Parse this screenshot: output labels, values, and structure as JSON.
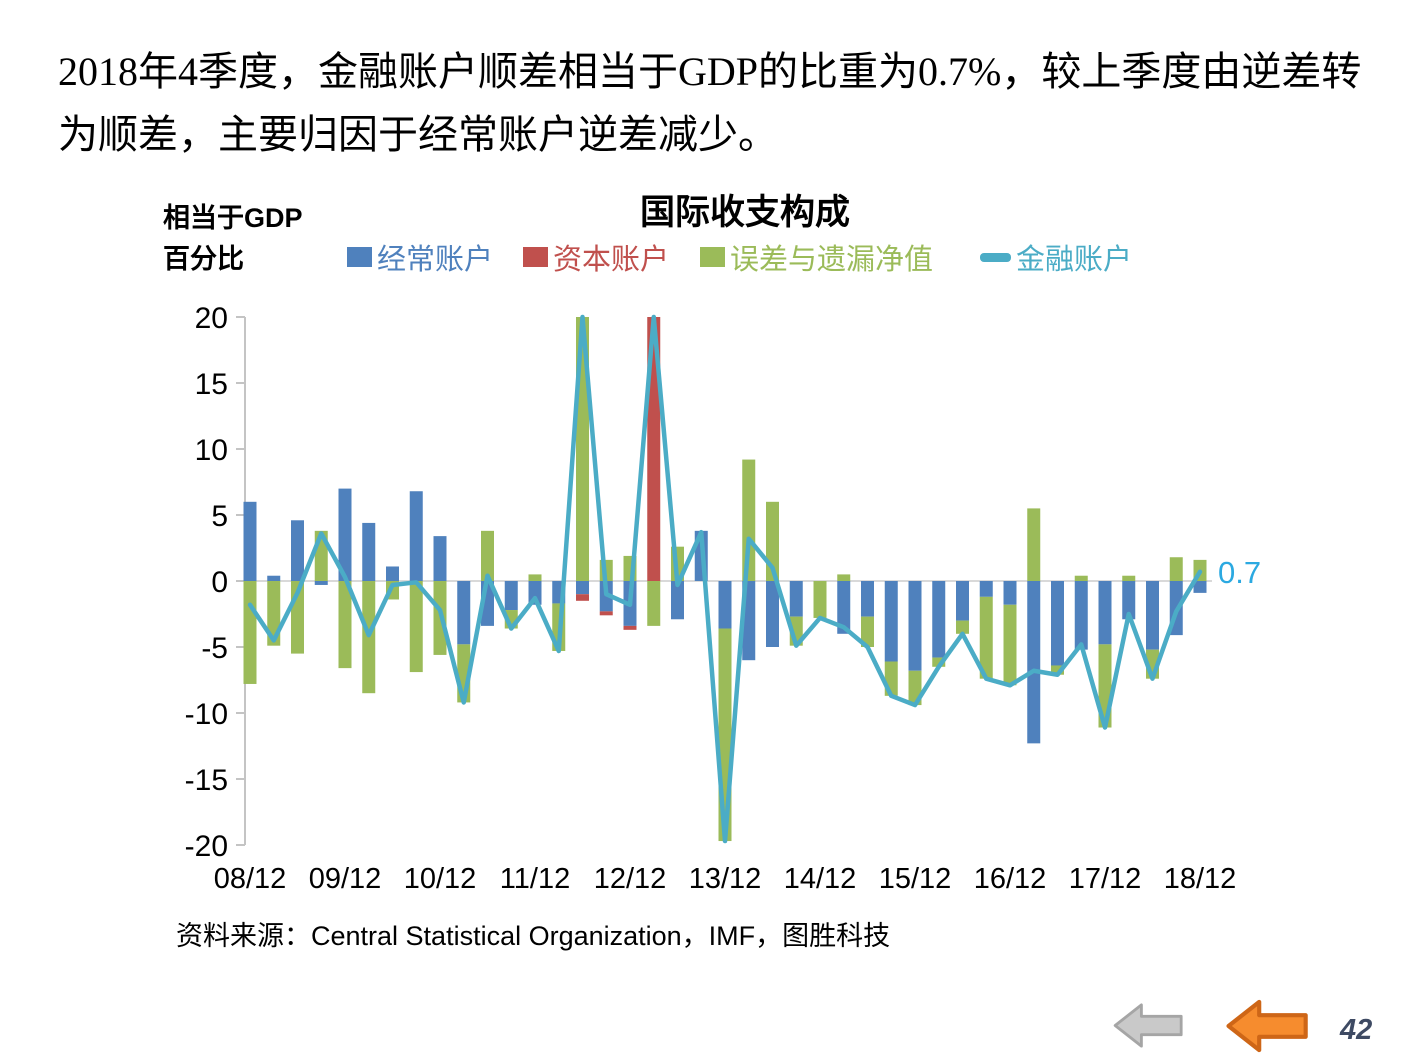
{
  "slide": {
    "headline": "2018年4季度，金融账户顺差相当于GDP的比重为0.7%，较上季度由逆差转为顺差，主要归因于经常账户逆差减少。",
    "source_note": "资料来源：Central Statistical Organization，IMF，图胜科技",
    "page_number": "42",
    "nav": {
      "arrows": [
        {
          "icon": "gray-left-arrow",
          "fill": "#C9C9C9",
          "stroke": "#A5A5A5"
        },
        {
          "icon": "orange-left-arrow",
          "fill": "#F68C2E",
          "stroke": "#CE6617"
        }
      ]
    }
  },
  "chart": {
    "title": "国际收支构成",
    "unit_label_line1": "相当于GDP",
    "unit_label_line2": "百分比",
    "end_label": {
      "text": "0.7",
      "color": "#2BA9E1"
    }
  },
  "chart_data": {
    "type": "bar",
    "subtype": "stacked bars with line overlay",
    "title": "国际收支构成",
    "xlabel": "",
    "ylabel": "相当于GDP百分比",
    "ylim": [
      -20,
      20
    ],
    "y_ticks": [
      20,
      15,
      10,
      5,
      0,
      -5,
      -10,
      -15,
      -20
    ],
    "x_tick_labels": [
      "08/12",
      "09/12",
      "10/12",
      "11/12",
      "12/12",
      "13/12",
      "14/12",
      "15/12",
      "16/12",
      "17/12",
      "18/12"
    ],
    "grid": "zero gridline only",
    "legend_position": "top",
    "axis_color": "#C4C4C4",
    "zero_line_color": "#D9D9D9",
    "categories": [
      "08/12",
      "09/03",
      "09/06",
      "09/09",
      "09/12",
      "10/03",
      "10/06",
      "10/09",
      "10/12",
      "11/03",
      "11/06",
      "11/09",
      "11/12",
      "12/03",
      "12/06",
      "12/09",
      "12/12",
      "13/03",
      "13/06",
      "13/09",
      "13/12",
      "14/03",
      "14/06",
      "14/09",
      "14/12",
      "15/03",
      "15/06",
      "15/09",
      "15/12",
      "16/03",
      "16/06",
      "16/09",
      "16/12",
      "17/03",
      "17/06",
      "17/09",
      "17/12",
      "18/03",
      "18/06",
      "18/09",
      "18/12"
    ],
    "series": [
      {
        "name": "经常账户",
        "type": "bar",
        "color": "#4F81BD",
        "values": [
          6.0,
          0.4,
          4.6,
          -0.3,
          7.0,
          4.4,
          1.1,
          6.8,
          3.4,
          -4.8,
          -3.4,
          -2.2,
          -1.8,
          -1.7,
          -1.0,
          -2.3,
          -3.4,
          0,
          -2.9,
          3.8,
          -3.6,
          -6.0,
          -5.0,
          -2.7,
          0,
          -4.0,
          -2.7,
          -6.1,
          -6.8,
          -5.8,
          -3.0,
          -1.2,
          -1.8,
          -12.3,
          -6.4,
          -5.2,
          -4.8,
          -2.9,
          -5.2,
          -4.1,
          -0.9
        ]
      },
      {
        "name": "资本账户",
        "type": "bar",
        "color": "#C0504D",
        "values": [
          0,
          0,
          0,
          0,
          0,
          0,
          0,
          0,
          0,
          0,
          0,
          0,
          0,
          0,
          -0.5,
          -0.3,
          -0.3,
          24.0,
          0,
          0,
          0,
          0,
          0,
          0,
          0,
          0,
          0,
          0,
          0,
          0,
          0,
          0,
          0,
          0,
          0,
          0,
          0,
          0,
          0,
          0,
          0
        ]
      },
      {
        "name": "误差与遗漏净值",
        "type": "bar",
        "color": "#9BBB59",
        "values": [
          -7.8,
          -4.9,
          -5.5,
          3.8,
          -6.6,
          -8.5,
          -1.4,
          -6.9,
          -5.6,
          -4.4,
          3.8,
          -1.4,
          0.5,
          -3.6,
          23.5,
          1.6,
          1.9,
          -3.4,
          2.6,
          0,
          -16.1,
          9.2,
          6.0,
          -2.2,
          -2.8,
          0.5,
          -2.3,
          -2.6,
          -2.6,
          -0.7,
          -1.0,
          -6.2,
          -6.1,
          5.5,
          -0.7,
          0.4,
          -6.3,
          0.4,
          -2.2,
          1.8,
          1.6
        ]
      },
      {
        "name": "金融账户",
        "type": "line",
        "color": "#4BACC6",
        "values": [
          -1.8,
          -4.5,
          -0.9,
          3.6,
          0.3,
          -4.1,
          -0.3,
          -0.1,
          -2.2,
          -9.2,
          0.4,
          -3.6,
          -1.3,
          -5.3,
          22.0,
          -1.0,
          -1.8,
          20.6,
          -0.3,
          3.7,
          -19.7,
          3.2,
          1.0,
          -4.9,
          -2.8,
          -3.5,
          -5.0,
          -8.7,
          -9.4,
          -6.5,
          -4.0,
          -7.4,
          -7.9,
          -6.8,
          -7.1,
          -4.8,
          -11.1,
          -2.5,
          -7.4,
          -2.3,
          0.7
        ]
      }
    ],
    "annotations": [
      {
        "text": "0.7",
        "series": "金融账户",
        "category": "18/12",
        "color": "#2BA9E1"
      }
    ],
    "notes": "Quarterly data. Bars for 经常账户/资本账户/误差与遗漏净值 are stacked from zero; 金融账户 is the teal line (≈ sum of bars). Spikes at 12/06 (误差与遗漏净值 and line) and 13/03 (资本账户 and line) exceed +20 and are clipped at the top axis bound."
  }
}
